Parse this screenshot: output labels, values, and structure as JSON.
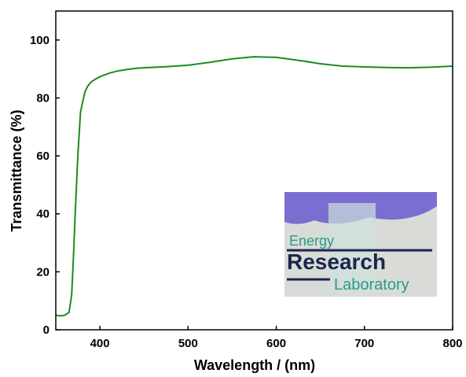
{
  "chart_data": {
    "type": "line",
    "x_label": "Wavelength / (nm)",
    "y_label": "Transmittance (%)",
    "x": [
      350,
      355,
      360,
      365,
      368,
      370,
      372,
      375,
      378,
      380,
      383,
      386,
      390,
      395,
      400,
      410,
      420,
      430,
      440,
      450,
      475,
      500,
      525,
      550,
      575,
      600,
      625,
      650,
      675,
      700,
      725,
      750,
      775,
      800
    ],
    "series": [
      {
        "color": "#1b8c1f",
        "values": [
          5,
          4.8,
          5,
          6,
          12,
          25,
          40,
          60,
          75,
          78,
          82,
          84,
          85.5,
          86.5,
          87.3,
          88.5,
          89.3,
          89.8,
          90.2,
          90.4,
          90.8,
          91.3,
          92.3,
          93.5,
          94.2,
          94,
          93,
          91.8,
          91,
          90.7,
          90.5,
          90.4,
          90.6,
          91
        ]
      }
    ],
    "xlim": [
      350,
      800
    ],
    "xticks": [
      400,
      500,
      600,
      700,
      800
    ],
    "ylim": [
      0,
      110
    ],
    "yticks": [
      0,
      20,
      40,
      60,
      80,
      100
    ],
    "inset_text": [
      "Energy",
      "Research",
      "Laboratory"
    ]
  }
}
